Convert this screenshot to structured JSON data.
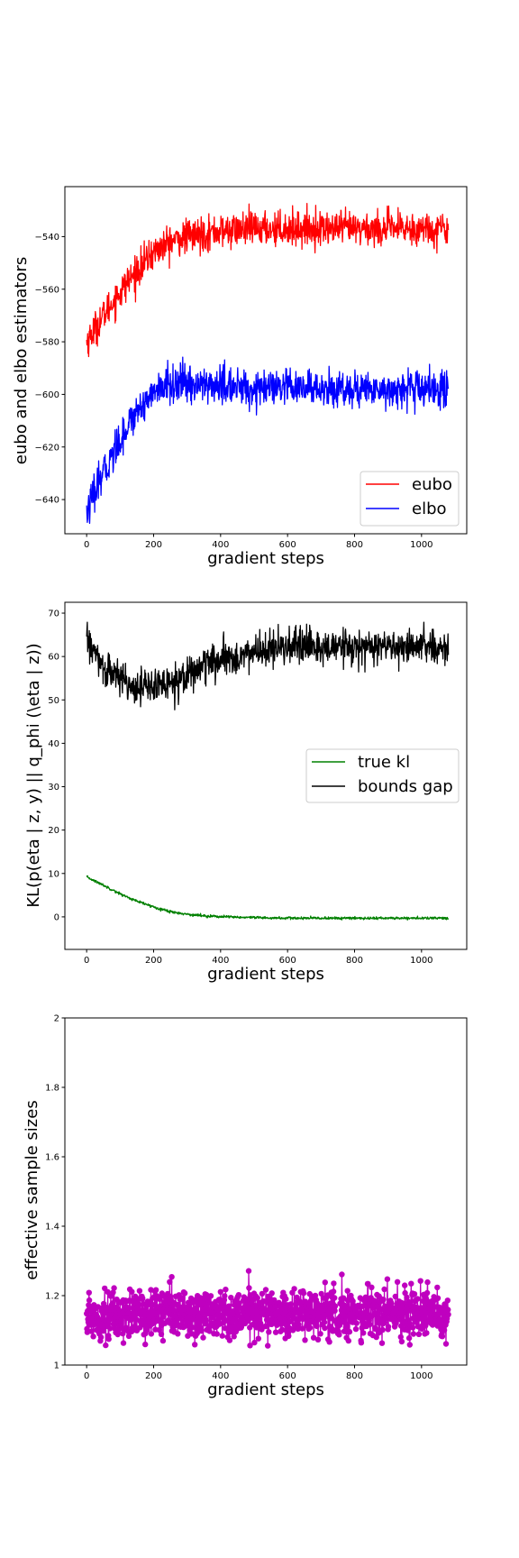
{
  "chart_data": [
    {
      "type": "line",
      "xlabel": "gradient steps",
      "ylabel": "eubo and elbo estimators",
      "xticks": [
        0,
        200,
        400,
        600,
        800,
        1000
      ],
      "yticks": [
        -540,
        -560,
        -580,
        -600,
        -620,
        -640
      ],
      "xlim": [
        -65,
        1135
      ],
      "ylim": [
        -653,
        -521
      ],
      "legend": "lower right",
      "grid": false,
      "series": [
        {
          "name": "eubo",
          "color": "#ff0000",
          "x": [
            0,
            50,
            100,
            150,
            200,
            250,
            300,
            400,
            500,
            600,
            700,
            800,
            900,
            1000,
            1080
          ],
          "y": [
            -580,
            -570,
            -561,
            -553,
            -546,
            -542,
            -540,
            -538,
            -537,
            -537,
            -537,
            -537,
            -537,
            -537,
            -537
          ],
          "noise": 3.2
        },
        {
          "name": "elbo",
          "color": "#0000ff",
          "x": [
            0,
            50,
            100,
            150,
            200,
            250,
            300,
            400,
            500,
            600,
            700,
            800,
            900,
            1000,
            1080
          ],
          "y": [
            -645,
            -630,
            -617,
            -606,
            -599,
            -596,
            -596,
            -597,
            -598,
            -598,
            -598,
            -598,
            -598,
            -598,
            -598
          ],
          "noise": 3.5
        }
      ]
    },
    {
      "type": "line",
      "xlabel": "gradient steps",
      "ylabel": "KL(p(eta | z, y) || q_phi (\\eta | z))",
      "xticks": [
        0,
        200,
        400,
        600,
        800,
        1000
      ],
      "yticks": [
        0,
        10,
        20,
        30,
        40,
        50,
        60,
        70
      ],
      "xlim": [
        -65,
        1135
      ],
      "ylim": [
        -7.5,
        72.5
      ],
      "legend": "center right",
      "grid": false,
      "series": [
        {
          "name": "true kl",
          "color": "#008000",
          "x": [
            0,
            50,
            100,
            150,
            200,
            250,
            300,
            350,
            400,
            500,
            600,
            700,
            800,
            900,
            1000,
            1080
          ],
          "y": [
            9.2,
            7.3,
            5.3,
            3.6,
            2.3,
            1.2,
            0.6,
            0.25,
            0.05,
            -0.2,
            -0.3,
            -0.3,
            -0.3,
            -0.3,
            -0.3,
            -0.3
          ],
          "noise": 0.15
        },
        {
          "name": "bounds gap",
          "color": "#000000",
          "x": [
            0,
            50,
            100,
            150,
            200,
            250,
            300,
            350,
            400,
            500,
            600,
            700,
            800,
            900,
            1000,
            1080
          ],
          "y": [
            64,
            57,
            55,
            53,
            53,
            54,
            56,
            58,
            59,
            61,
            62,
            62,
            62,
            62,
            62,
            62
          ],
          "noise": 2.0
        }
      ]
    },
    {
      "type": "line",
      "xlabel": "gradient steps",
      "ylabel": "effective sample sizes",
      "xticks": [
        0,
        200,
        400,
        600,
        800,
        1000
      ],
      "yticks": [
        1.0,
        1.2,
        1.4,
        1.6,
        1.8,
        2.0
      ],
      "xlim": [
        -65,
        1135
      ],
      "ylim": [
        1.0,
        2.0
      ],
      "grid": false,
      "series": [
        {
          "color": "#bf00bf",
          "marker": "o",
          "x": [
            0,
            200,
            400,
            600,
            800,
            1000,
            1080
          ],
          "y": [
            1.14,
            1.15,
            1.15,
            1.15,
            1.15,
            1.15,
            1.15
          ],
          "noise": 0.035
        }
      ]
    }
  ]
}
